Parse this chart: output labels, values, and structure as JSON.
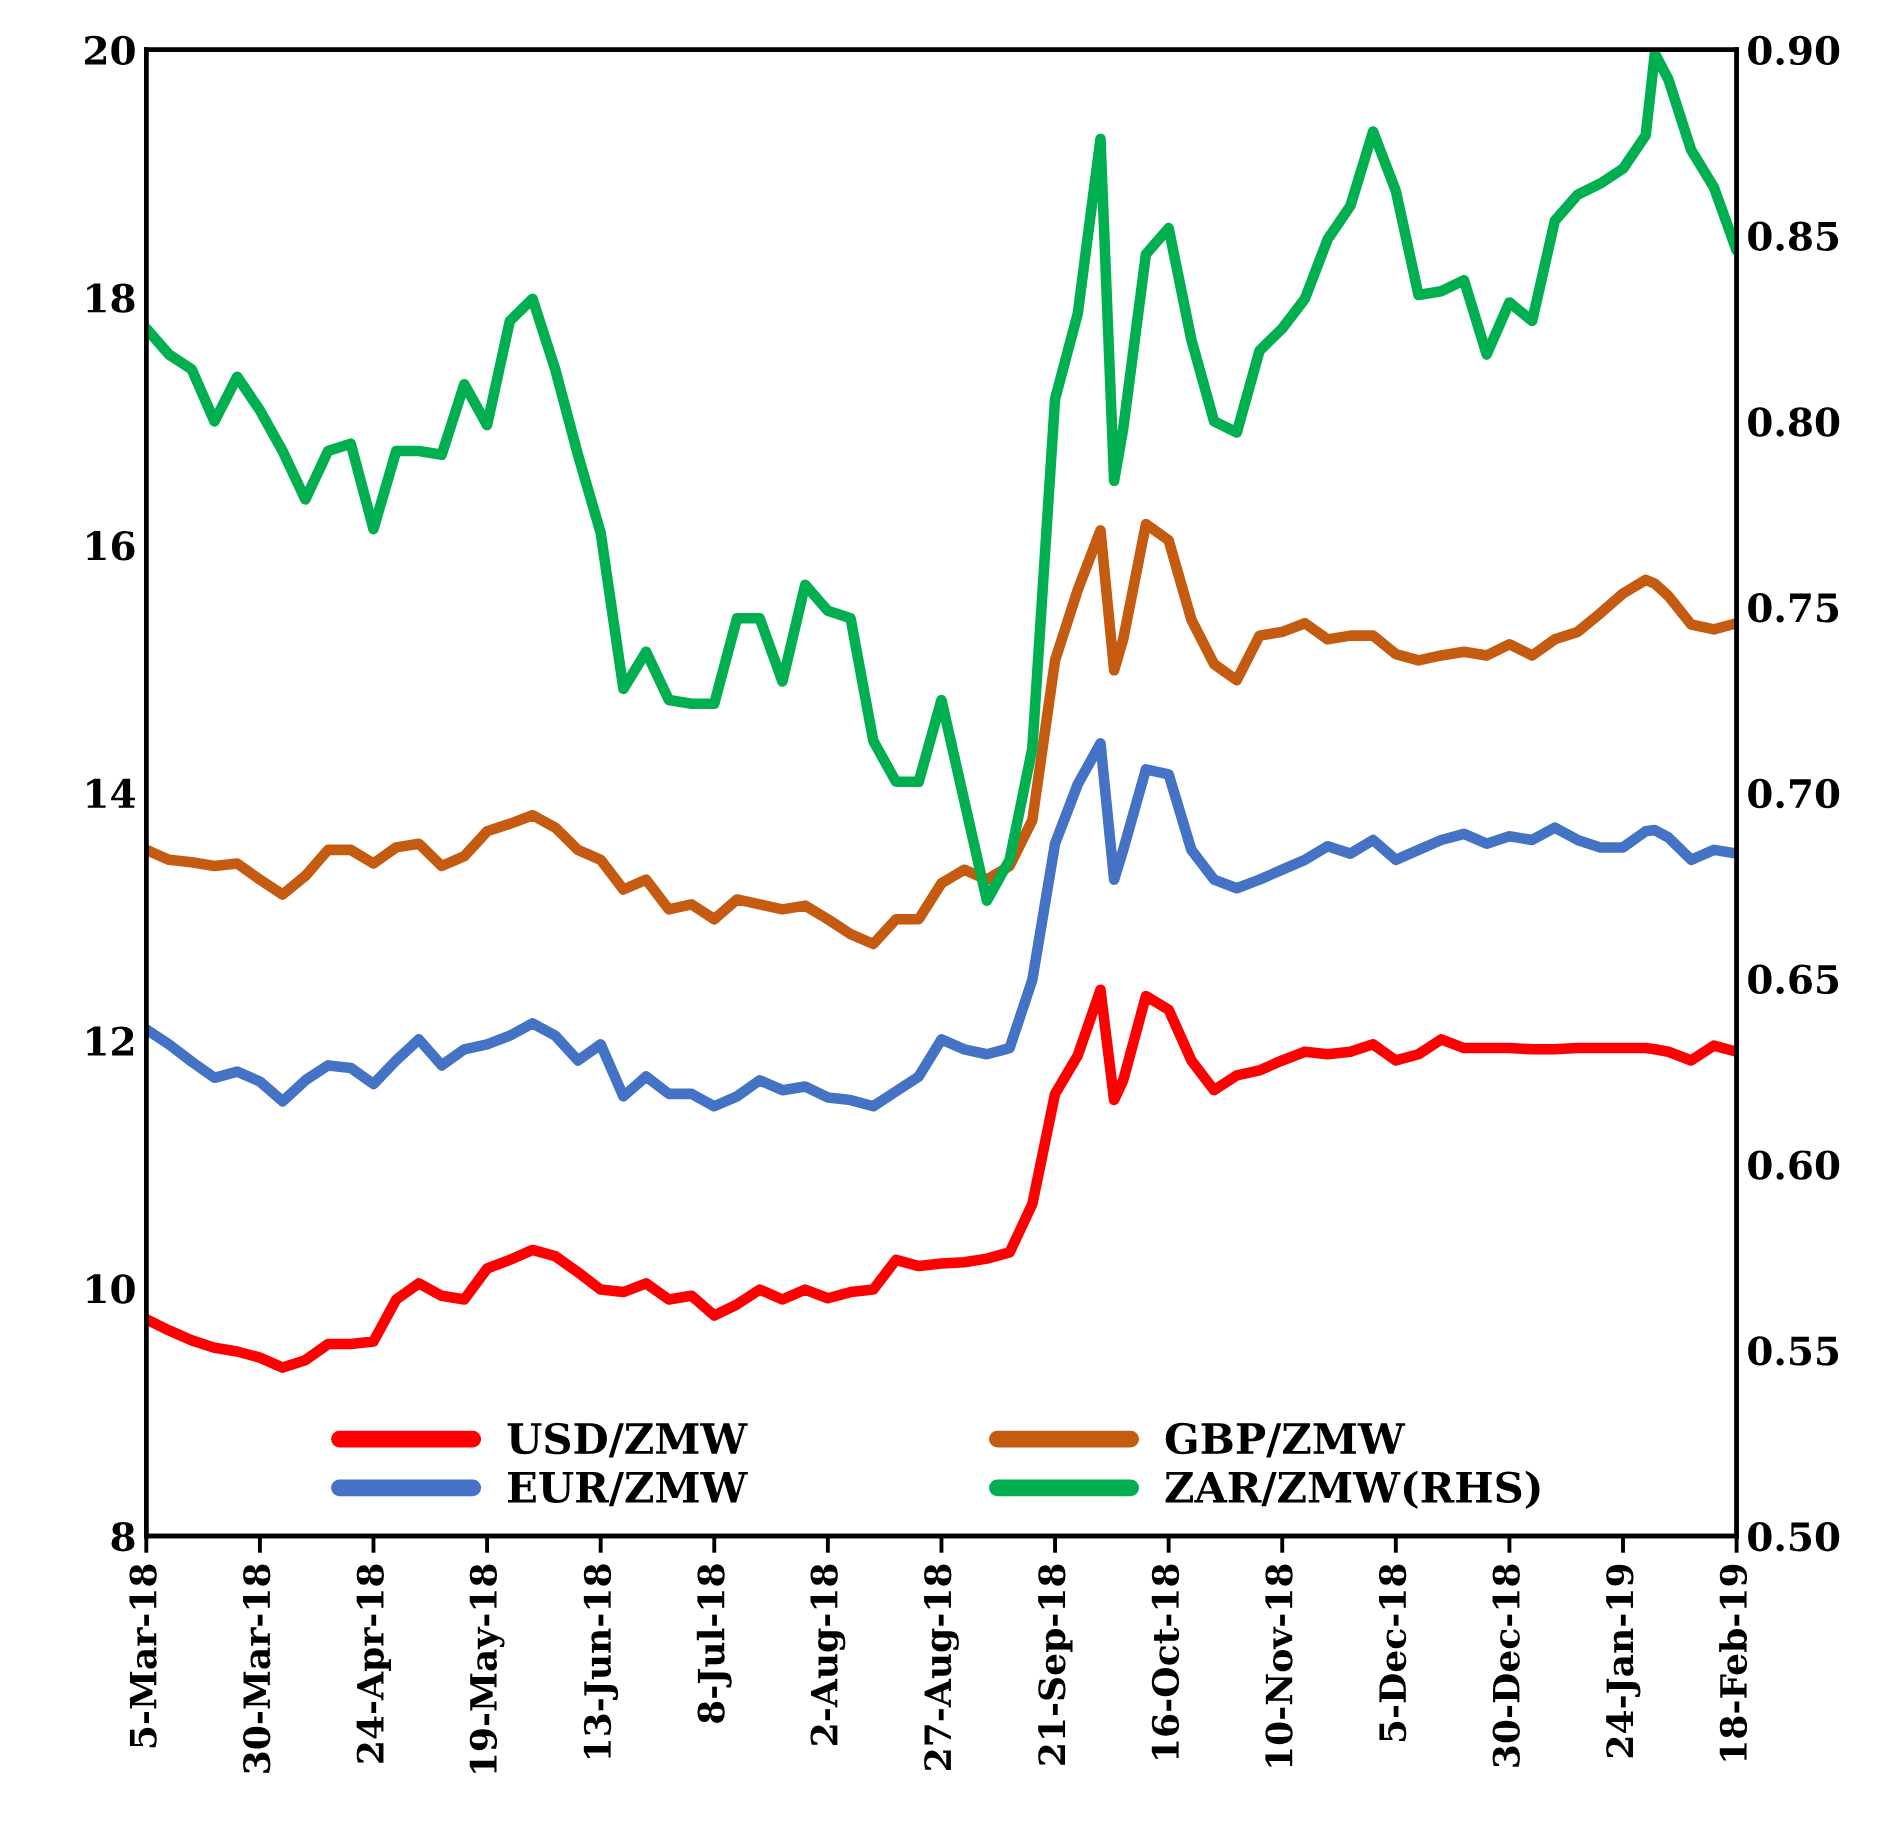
{
  "chart_data": {
    "type": "line",
    "x": [
      "2018-03-05",
      "2018-03-10",
      "2018-03-15",
      "2018-03-20",
      "2018-03-25",
      "2018-03-30",
      "2018-04-04",
      "2018-04-09",
      "2018-04-14",
      "2018-04-19",
      "2018-04-24",
      "2018-04-29",
      "2018-05-04",
      "2018-05-09",
      "2018-05-14",
      "2018-05-19",
      "2018-05-24",
      "2018-05-29",
      "2018-06-03",
      "2018-06-08",
      "2018-06-13",
      "2018-06-18",
      "2018-06-23",
      "2018-06-28",
      "2018-07-03",
      "2018-07-08",
      "2018-07-13",
      "2018-07-18",
      "2018-07-23",
      "2018-07-28",
      "2018-08-02",
      "2018-08-07",
      "2018-08-12",
      "2018-08-17",
      "2018-08-22",
      "2018-08-27",
      "2018-09-01",
      "2018-09-06",
      "2018-09-11",
      "2018-09-16",
      "2018-09-21",
      "2018-09-26",
      "2018-10-01",
      "2018-10-04",
      "2018-10-06",
      "2018-10-11",
      "2018-10-16",
      "2018-10-21",
      "2018-10-26",
      "2018-10-31",
      "2018-11-05",
      "2018-11-10",
      "2018-11-15",
      "2018-11-20",
      "2018-11-25",
      "2018-11-30",
      "2018-12-05",
      "2018-12-10",
      "2018-12-15",
      "2018-12-20",
      "2018-12-25",
      "2018-12-30",
      "2019-01-04",
      "2019-01-09",
      "2019-01-14",
      "2019-01-19",
      "2019-01-24",
      "2019-01-29",
      "2019-01-31",
      "2019-02-03",
      "2019-02-08",
      "2019-02-13",
      "2019-02-18"
    ],
    "series": [
      {
        "name": "USD/ZMW",
        "color": "#ff0000",
        "values": [
          9.75,
          9.66,
          9.58,
          9.52,
          9.49,
          9.44,
          9.36,
          9.42,
          9.55,
          9.55,
          9.57,
          9.91,
          10.04,
          9.94,
          9.91,
          10.16,
          10.23,
          10.31,
          10.26,
          10.13,
          9.99,
          9.97,
          10.04,
          9.91,
          9.94,
          9.78,
          9.87,
          9.99,
          9.91,
          9.99,
          9.92,
          9.97,
          9.99,
          10.23,
          10.18,
          10.2,
          10.21,
          10.24,
          10.29,
          10.68,
          11.57,
          11.88,
          12.41,
          11.52,
          11.68,
          12.36,
          12.25,
          11.84,
          11.6,
          11.72,
          11.76,
          11.84,
          11.91,
          11.89,
          11.91,
          11.97,
          11.84,
          11.89,
          12.01,
          11.94,
          11.94,
          11.94,
          11.93,
          11.93,
          11.94,
          11.94,
          11.94,
          11.94,
          11.93,
          11.91,
          11.84,
          11.96,
          11.91
        ]
      },
      {
        "name": "GBP/ZMW",
        "color": "#c55a11",
        "values": [
          13.54,
          13.46,
          13.44,
          13.41,
          13.43,
          13.3,
          13.18,
          13.33,
          13.54,
          13.54,
          13.43,
          13.56,
          13.59,
          13.41,
          13.49,
          13.69,
          13.75,
          13.82,
          13.72,
          13.54,
          13.46,
          13.22,
          13.3,
          13.06,
          13.1,
          12.98,
          13.14,
          13.1,
          13.06,
          13.09,
          12.98,
          12.86,
          12.78,
          12.98,
          12.98,
          13.27,
          13.38,
          13.3,
          13.41,
          13.78,
          15.07,
          15.64,
          16.12,
          14.99,
          15.24,
          16.17,
          16.04,
          15.4,
          15.04,
          14.91,
          15.27,
          15.3,
          15.37,
          15.24,
          15.27,
          15.27,
          15.12,
          15.07,
          15.11,
          15.14,
          15.11,
          15.2,
          15.11,
          15.24,
          15.3,
          15.45,
          15.61,
          15.72,
          15.69,
          15.59,
          15.36,
          15.32,
          15.37
        ]
      },
      {
        "name": "EUR/ZMW",
        "color": "#4472c4",
        "values": [
          12.09,
          11.97,
          11.83,
          11.7,
          11.75,
          11.67,
          11.51,
          11.68,
          11.8,
          11.78,
          11.65,
          11.84,
          12.01,
          11.8,
          11.93,
          11.97,
          12.04,
          12.14,
          12.04,
          11.84,
          11.97,
          11.55,
          11.71,
          11.57,
          11.57,
          11.47,
          11.55,
          11.68,
          11.6,
          11.63,
          11.54,
          11.52,
          11.47,
          11.59,
          11.71,
          12.01,
          11.93,
          11.89,
          11.94,
          12.49,
          13.59,
          14.07,
          14.4,
          13.3,
          13.54,
          14.19,
          14.15,
          13.54,
          13.3,
          13.23,
          13.3,
          13.38,
          13.46,
          13.57,
          13.51,
          13.62,
          13.46,
          13.54,
          13.62,
          13.67,
          13.59,
          13.65,
          13.62,
          13.72,
          13.62,
          13.56,
          13.56,
          13.69,
          13.7,
          13.64,
          13.46,
          13.54,
          13.51
        ]
      },
      {
        "name": "ZAR/ZMW(RHS)",
        "color": "#00b050",
        "axis": "y2",
        "values": [
          0.825,
          0.818,
          0.814,
          0.8,
          0.812,
          0.803,
          0.792,
          0.779,
          0.792,
          0.794,
          0.771,
          0.792,
          0.792,
          0.791,
          0.81,
          0.799,
          0.827,
          0.833,
          0.814,
          0.791,
          0.77,
          0.728,
          0.738,
          0.725,
          0.724,
          0.724,
          0.747,
          0.747,
          0.73,
          0.756,
          0.749,
          0.747,
          0.714,
          0.703,
          0.703,
          0.725,
          0.698,
          0.671,
          0.682,
          0.712,
          0.806,
          0.829,
          0.876,
          0.784,
          0.798,
          0.845,
          0.852,
          0.822,
          0.8,
          0.797,
          0.819,
          0.825,
          0.833,
          0.849,
          0.858,
          0.878,
          0.862,
          0.834,
          0.835,
          0.838,
          0.818,
          0.832,
          0.827,
          0.854,
          0.861,
          0.864,
          0.868,
          0.877,
          0.899,
          0.892,
          0.873,
          0.863,
          0.846
        ]
      }
    ],
    "xlim": [
      "2018-03-05",
      "2019-02-18"
    ],
    "xticks": [
      {
        "value": "2018-03-05",
        "label": "5-Mar-18"
      },
      {
        "value": "2018-03-30",
        "label": "30-Mar-18"
      },
      {
        "value": "2018-04-24",
        "label": "24-Apr-18"
      },
      {
        "value": "2018-05-19",
        "label": "19-May-18"
      },
      {
        "value": "2018-06-13",
        "label": "13-Jun-18"
      },
      {
        "value": "2018-07-08",
        "label": "8-Jul-18"
      },
      {
        "value": "2018-08-02",
        "label": "2-Aug-18"
      },
      {
        "value": "2018-08-27",
        "label": "27-Aug-18"
      },
      {
        "value": "2018-09-21",
        "label": "21-Sep-18"
      },
      {
        "value": "2018-10-16",
        "label": "16-Oct-18"
      },
      {
        "value": "2018-11-10",
        "label": "10-Nov-18"
      },
      {
        "value": "2018-12-05",
        "label": "5-Dec-18"
      },
      {
        "value": "2018-12-30",
        "label": "30-Dec-18"
      },
      {
        "value": "2019-01-24",
        "label": "24-Jan-19"
      },
      {
        "value": "2019-02-18",
        "label": "18-Feb-19"
      }
    ],
    "ylim": [
      8,
      20
    ],
    "yticks": [
      8,
      10,
      12,
      14,
      16,
      18,
      20
    ],
    "y2lim": [
      0.5,
      0.9
    ],
    "y2ticks": [
      {
        "value": 0.5,
        "label": "0.50"
      },
      {
        "value": 0.55,
        "label": "0.55"
      },
      {
        "value": 0.6,
        "label": "0.60"
      },
      {
        "value": 0.65,
        "label": "0.65"
      },
      {
        "value": 0.7,
        "label": "0.70"
      },
      {
        "value": 0.75,
        "label": "0.75"
      },
      {
        "value": 0.8,
        "label": "0.80"
      },
      {
        "value": 0.85,
        "label": "0.85"
      },
      {
        "value": 0.9,
        "label": "0.90"
      }
    ],
    "legend": "bottom",
    "grid": false,
    "marker": "none",
    "line_style": "solid"
  }
}
